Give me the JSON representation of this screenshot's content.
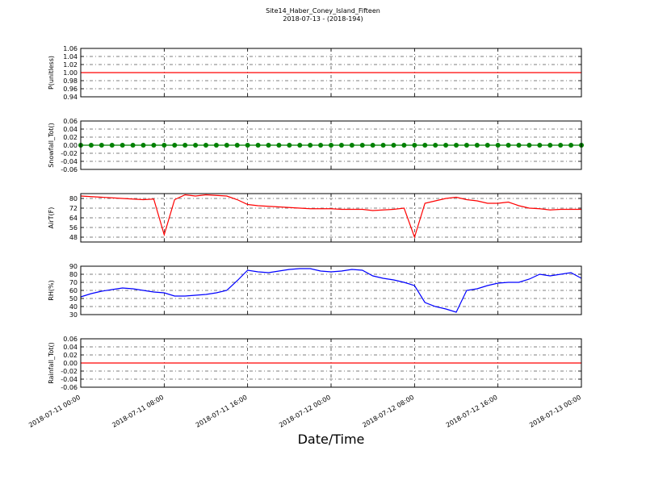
{
  "title": "Site14_Haber_Coney_Island_Fifteen",
  "subtitle": "2018-07-13 - (2018-194)",
  "xlabel": "Date/Time",
  "chart_data": [
    {
      "type": "line",
      "ylabel": "P(unitless)",
      "grid": true,
      "x": [
        "2018-07-11 00:00",
        "2018-07-11 01:00",
        "2018-07-11 02:00",
        "2018-07-11 03:00",
        "2018-07-11 04:00",
        "2018-07-11 05:00",
        "2018-07-11 06:00",
        "2018-07-11 07:00",
        "2018-07-11 08:00",
        "2018-07-11 09:00",
        "2018-07-11 10:00",
        "2018-07-11 11:00",
        "2018-07-11 12:00",
        "2018-07-11 13:00",
        "2018-07-11 14:00",
        "2018-07-11 15:00",
        "2018-07-11 16:00",
        "2018-07-11 17:00",
        "2018-07-11 18:00",
        "2018-07-11 19:00",
        "2018-07-11 20:00",
        "2018-07-11 21:00",
        "2018-07-11 22:00",
        "2018-07-11 23:00",
        "2018-07-12 00:00",
        "2018-07-12 01:00",
        "2018-07-12 02:00",
        "2018-07-12 03:00",
        "2018-07-12 04:00",
        "2018-07-12 05:00",
        "2018-07-12 06:00",
        "2018-07-12 07:00",
        "2018-07-12 08:00",
        "2018-07-12 09:00",
        "2018-07-12 10:00",
        "2018-07-12 11:00",
        "2018-07-12 12:00",
        "2018-07-12 13:00",
        "2018-07-12 14:00",
        "2018-07-12 15:00",
        "2018-07-12 16:00",
        "2018-07-12 17:00",
        "2018-07-12 18:00",
        "2018-07-12 19:00",
        "2018-07-12 20:00",
        "2018-07-12 21:00",
        "2018-07-12 22:00",
        "2018-07-12 23:00",
        "2018-07-13 00:00"
      ],
      "series": [
        {
          "color": "#ff0000",
          "values": [
            1,
            1,
            1,
            1,
            1,
            1,
            1,
            1,
            1,
            1,
            1,
            1,
            1,
            1,
            1,
            1,
            1,
            1,
            1,
            1,
            1,
            1,
            1,
            1,
            1,
            1,
            1,
            1,
            1,
            1,
            1,
            1,
            1,
            1,
            1,
            1,
            1,
            1,
            1,
            1,
            1,
            1,
            1,
            1,
            1,
            1,
            1,
            1,
            1
          ]
        }
      ],
      "xlim": [
        "2018-07-11 00:00",
        "2018-07-13 00:00"
      ],
      "xticks": [
        "2018-07-11 00:00",
        "2018-07-11 08:00",
        "2018-07-11 16:00",
        "2018-07-12 00:00",
        "2018-07-12 08:00",
        "2018-07-12 16:00",
        "2018-07-13 00:00"
      ],
      "ylim": [
        0.94,
        1.06
      ],
      "yticks": [
        0.94,
        0.96,
        0.98,
        {
          "value": 1,
          "label": "1.00"
        },
        1.02,
        1.04,
        1.06
      ]
    },
    {
      "type": "line",
      "ylabel": "Snowfall_Tot()",
      "grid": true,
      "marker": true,
      "x": [
        "2018-07-11 00:00",
        "2018-07-11 01:00",
        "2018-07-11 02:00",
        "2018-07-11 03:00",
        "2018-07-11 04:00",
        "2018-07-11 05:00",
        "2018-07-11 06:00",
        "2018-07-11 07:00",
        "2018-07-11 08:00",
        "2018-07-11 09:00",
        "2018-07-11 10:00",
        "2018-07-11 11:00",
        "2018-07-11 12:00",
        "2018-07-11 13:00",
        "2018-07-11 14:00",
        "2018-07-11 15:00",
        "2018-07-11 16:00",
        "2018-07-11 17:00",
        "2018-07-11 18:00",
        "2018-07-11 19:00",
        "2018-07-11 20:00",
        "2018-07-11 21:00",
        "2018-07-11 22:00",
        "2018-07-11 23:00",
        "2018-07-12 00:00",
        "2018-07-12 01:00",
        "2018-07-12 02:00",
        "2018-07-12 03:00",
        "2018-07-12 04:00",
        "2018-07-12 05:00",
        "2018-07-12 06:00",
        "2018-07-12 07:00",
        "2018-07-12 08:00",
        "2018-07-12 09:00",
        "2018-07-12 10:00",
        "2018-07-12 11:00",
        "2018-07-12 12:00",
        "2018-07-12 13:00",
        "2018-07-12 14:00",
        "2018-07-12 15:00",
        "2018-07-12 16:00",
        "2018-07-12 17:00",
        "2018-07-12 18:00",
        "2018-07-12 19:00",
        "2018-07-12 20:00",
        "2018-07-12 21:00",
        "2018-07-12 22:00",
        "2018-07-12 23:00",
        "2018-07-13 00:00"
      ],
      "series": [
        {
          "color": "#008000",
          "values": [
            0,
            0,
            0,
            0,
            0,
            0,
            0,
            0,
            0,
            0,
            0,
            0,
            0,
            0,
            0,
            0,
            0,
            0,
            0,
            0,
            0,
            0,
            0,
            0,
            0,
            0,
            0,
            0,
            0,
            0,
            0,
            0,
            0,
            0,
            0,
            0,
            0,
            0,
            0,
            0,
            0,
            0,
            0,
            0,
            0,
            0,
            0,
            0,
            0
          ]
        }
      ],
      "xlim": [
        "2018-07-11 00:00",
        "2018-07-13 00:00"
      ],
      "xticks": [
        "2018-07-11 00:00",
        "2018-07-11 08:00",
        "2018-07-11 16:00",
        "2018-07-12 00:00",
        "2018-07-12 08:00",
        "2018-07-12 16:00",
        "2018-07-13 00:00"
      ],
      "ylim": [
        -0.06,
        0.06
      ],
      "yticks": [
        -0.06,
        -0.04,
        -0.02,
        {
          "value": 0,
          "label": "0.00"
        },
        0.02,
        0.04,
        0.06
      ]
    },
    {
      "type": "line",
      "ylabel": "AirT(F)",
      "grid": true,
      "x": [
        "2018-07-11 00:00",
        "2018-07-11 01:00",
        "2018-07-11 02:00",
        "2018-07-11 03:00",
        "2018-07-11 04:00",
        "2018-07-11 05:00",
        "2018-07-11 06:00",
        "2018-07-11 07:00",
        "2018-07-11 08:00",
        "2018-07-11 09:00",
        "2018-07-11 10:00",
        "2018-07-11 11:00",
        "2018-07-11 12:00",
        "2018-07-11 13:00",
        "2018-07-11 14:00",
        "2018-07-11 15:00",
        "2018-07-11 16:00",
        "2018-07-11 17:00",
        "2018-07-11 18:00",
        "2018-07-11 19:00",
        "2018-07-11 20:00",
        "2018-07-11 21:00",
        "2018-07-11 22:00",
        "2018-07-11 23:00",
        "2018-07-12 00:00",
        "2018-07-12 01:00",
        "2018-07-12 02:00",
        "2018-07-12 03:00",
        "2018-07-12 04:00",
        "2018-07-12 05:00",
        "2018-07-12 06:00",
        "2018-07-12 07:00",
        "2018-07-12 08:00",
        "2018-07-12 09:00",
        "2018-07-12 10:00",
        "2018-07-12 11:00",
        "2018-07-12 12:00",
        "2018-07-12 13:00",
        "2018-07-12 14:00",
        "2018-07-12 15:00",
        "2018-07-12 16:00",
        "2018-07-12 17:00",
        "2018-07-12 18:00",
        "2018-07-12 19:00",
        "2018-07-12 20:00",
        "2018-07-12 21:00",
        "2018-07-12 22:00",
        "2018-07-12 23:00",
        "2018-07-13 00:00"
      ],
      "series": [
        {
          "color": "#ff0000",
          "values": [
            82,
            81.5,
            81,
            80.5,
            80,
            79.5,
            79,
            79.5,
            50,
            79,
            83,
            82,
            83,
            82.5,
            82,
            79,
            75,
            74,
            73.5,
            73,
            72.5,
            72,
            71.5,
            71.5,
            71.5,
            71,
            71,
            71,
            70,
            70.5,
            71,
            72,
            48,
            76,
            78,
            80,
            81,
            79,
            78,
            76,
            76,
            77,
            74,
            72,
            71.5,
            70.5,
            71,
            71,
            71
          ]
        }
      ],
      "xlim": [
        "2018-07-11 00:00",
        "2018-07-13 00:00"
      ],
      "xticks": [
        "2018-07-11 00:00",
        "2018-07-11 08:00",
        "2018-07-11 16:00",
        "2018-07-12 00:00",
        "2018-07-12 08:00",
        "2018-07-12 16:00",
        "2018-07-13 00:00"
      ],
      "ylim": [
        44,
        84
      ],
      "yticks": [
        48,
        56,
        64,
        72,
        80
      ]
    },
    {
      "type": "line",
      "ylabel": "RH(%)",
      "grid": true,
      "x": [
        "2018-07-11 00:00",
        "2018-07-11 01:00",
        "2018-07-11 02:00",
        "2018-07-11 03:00",
        "2018-07-11 04:00",
        "2018-07-11 05:00",
        "2018-07-11 06:00",
        "2018-07-11 07:00",
        "2018-07-11 08:00",
        "2018-07-11 09:00",
        "2018-07-11 10:00",
        "2018-07-11 11:00",
        "2018-07-11 12:00",
        "2018-07-11 13:00",
        "2018-07-11 14:00",
        "2018-07-11 15:00",
        "2018-07-11 16:00",
        "2018-07-11 17:00",
        "2018-07-11 18:00",
        "2018-07-11 19:00",
        "2018-07-11 20:00",
        "2018-07-11 21:00",
        "2018-07-11 22:00",
        "2018-07-11 23:00",
        "2018-07-12 00:00",
        "2018-07-12 01:00",
        "2018-07-12 02:00",
        "2018-07-12 03:00",
        "2018-07-12 04:00",
        "2018-07-12 05:00",
        "2018-07-12 06:00",
        "2018-07-12 07:00",
        "2018-07-12 08:00",
        "2018-07-12 09:00",
        "2018-07-12 10:00",
        "2018-07-12 11:00",
        "2018-07-12 12:00",
        "2018-07-12 13:00",
        "2018-07-12 14:00",
        "2018-07-12 15:00",
        "2018-07-12 16:00",
        "2018-07-12 17:00",
        "2018-07-12 18:00",
        "2018-07-12 19:00",
        "2018-07-12 20:00",
        "2018-07-12 21:00",
        "2018-07-12 22:00",
        "2018-07-12 23:00",
        "2018-07-13 00:00"
      ],
      "series": [
        {
          "color": "#0000ff",
          "values": [
            52,
            56,
            59,
            61,
            63,
            62,
            60,
            58,
            57,
            53,
            53,
            54,
            55,
            57,
            60,
            72,
            85,
            83,
            82,
            84,
            86,
            87,
            87,
            84,
            83,
            84,
            86,
            85,
            78,
            75,
            73,
            70,
            66,
            45,
            40,
            37,
            33,
            60,
            62,
            66,
            69,
            70,
            70,
            74,
            80,
            78,
            80,
            82,
            75
          ]
        }
      ],
      "xlim": [
        "2018-07-11 00:00",
        "2018-07-13 00:00"
      ],
      "xticks": [
        "2018-07-11 00:00",
        "2018-07-11 08:00",
        "2018-07-11 16:00",
        "2018-07-12 00:00",
        "2018-07-12 08:00",
        "2018-07-12 16:00",
        "2018-07-13 00:00"
      ],
      "ylim": [
        30,
        90
      ],
      "yticks": [
        30,
        40,
        50,
        60,
        70,
        80,
        90
      ]
    },
    {
      "type": "line",
      "ylabel": "Rainfall_Tot()",
      "grid": true,
      "x": [
        "2018-07-11 00:00",
        "2018-07-11 01:00",
        "2018-07-11 02:00",
        "2018-07-11 03:00",
        "2018-07-11 04:00",
        "2018-07-11 05:00",
        "2018-07-11 06:00",
        "2018-07-11 07:00",
        "2018-07-11 08:00",
        "2018-07-11 09:00",
        "2018-07-11 10:00",
        "2018-07-11 11:00",
        "2018-07-11 12:00",
        "2018-07-11 13:00",
        "2018-07-11 14:00",
        "2018-07-11 15:00",
        "2018-07-11 16:00",
        "2018-07-11 17:00",
        "2018-07-11 18:00",
        "2018-07-11 19:00",
        "2018-07-11 20:00",
        "2018-07-11 21:00",
        "2018-07-11 22:00",
        "2018-07-11 23:00",
        "2018-07-12 00:00",
        "2018-07-12 01:00",
        "2018-07-12 02:00",
        "2018-07-12 03:00",
        "2018-07-12 04:00",
        "2018-07-12 05:00",
        "2018-07-12 06:00",
        "2018-07-12 07:00",
        "2018-07-12 08:00",
        "2018-07-12 09:00",
        "2018-07-12 10:00",
        "2018-07-12 11:00",
        "2018-07-12 12:00",
        "2018-07-12 13:00",
        "2018-07-12 14:00",
        "2018-07-12 15:00",
        "2018-07-12 16:00",
        "2018-07-12 17:00",
        "2018-07-12 18:00",
        "2018-07-12 19:00",
        "2018-07-12 20:00",
        "2018-07-12 21:00",
        "2018-07-12 22:00",
        "2018-07-12 23:00",
        "2018-07-13 00:00"
      ],
      "series": [
        {
          "color": "#ff0000",
          "values": [
            0,
            0,
            0,
            0,
            0,
            0,
            0,
            0,
            0,
            0,
            0,
            0,
            0,
            0,
            0,
            0,
            0,
            0,
            0,
            0,
            0,
            0,
            0,
            0,
            0,
            0,
            0,
            0,
            0,
            0,
            0,
            0,
            0,
            0,
            0,
            0,
            0,
            0,
            0,
            0,
            0,
            0,
            0,
            0,
            0,
            0,
            0,
            0,
            0
          ]
        }
      ],
      "xlim": [
        "2018-07-11 00:00",
        "2018-07-13 00:00"
      ],
      "xticks": [
        "2018-07-11 00:00",
        "2018-07-11 08:00",
        "2018-07-11 16:00",
        "2018-07-12 00:00",
        "2018-07-12 08:00",
        "2018-07-12 16:00",
        "2018-07-13 00:00"
      ],
      "ylim": [
        -0.06,
        0.06
      ],
      "yticks": [
        -0.06,
        -0.04,
        -0.02,
        {
          "value": 0,
          "label": "0.00"
        },
        0.02,
        0.04,
        0.06
      ]
    }
  ]
}
